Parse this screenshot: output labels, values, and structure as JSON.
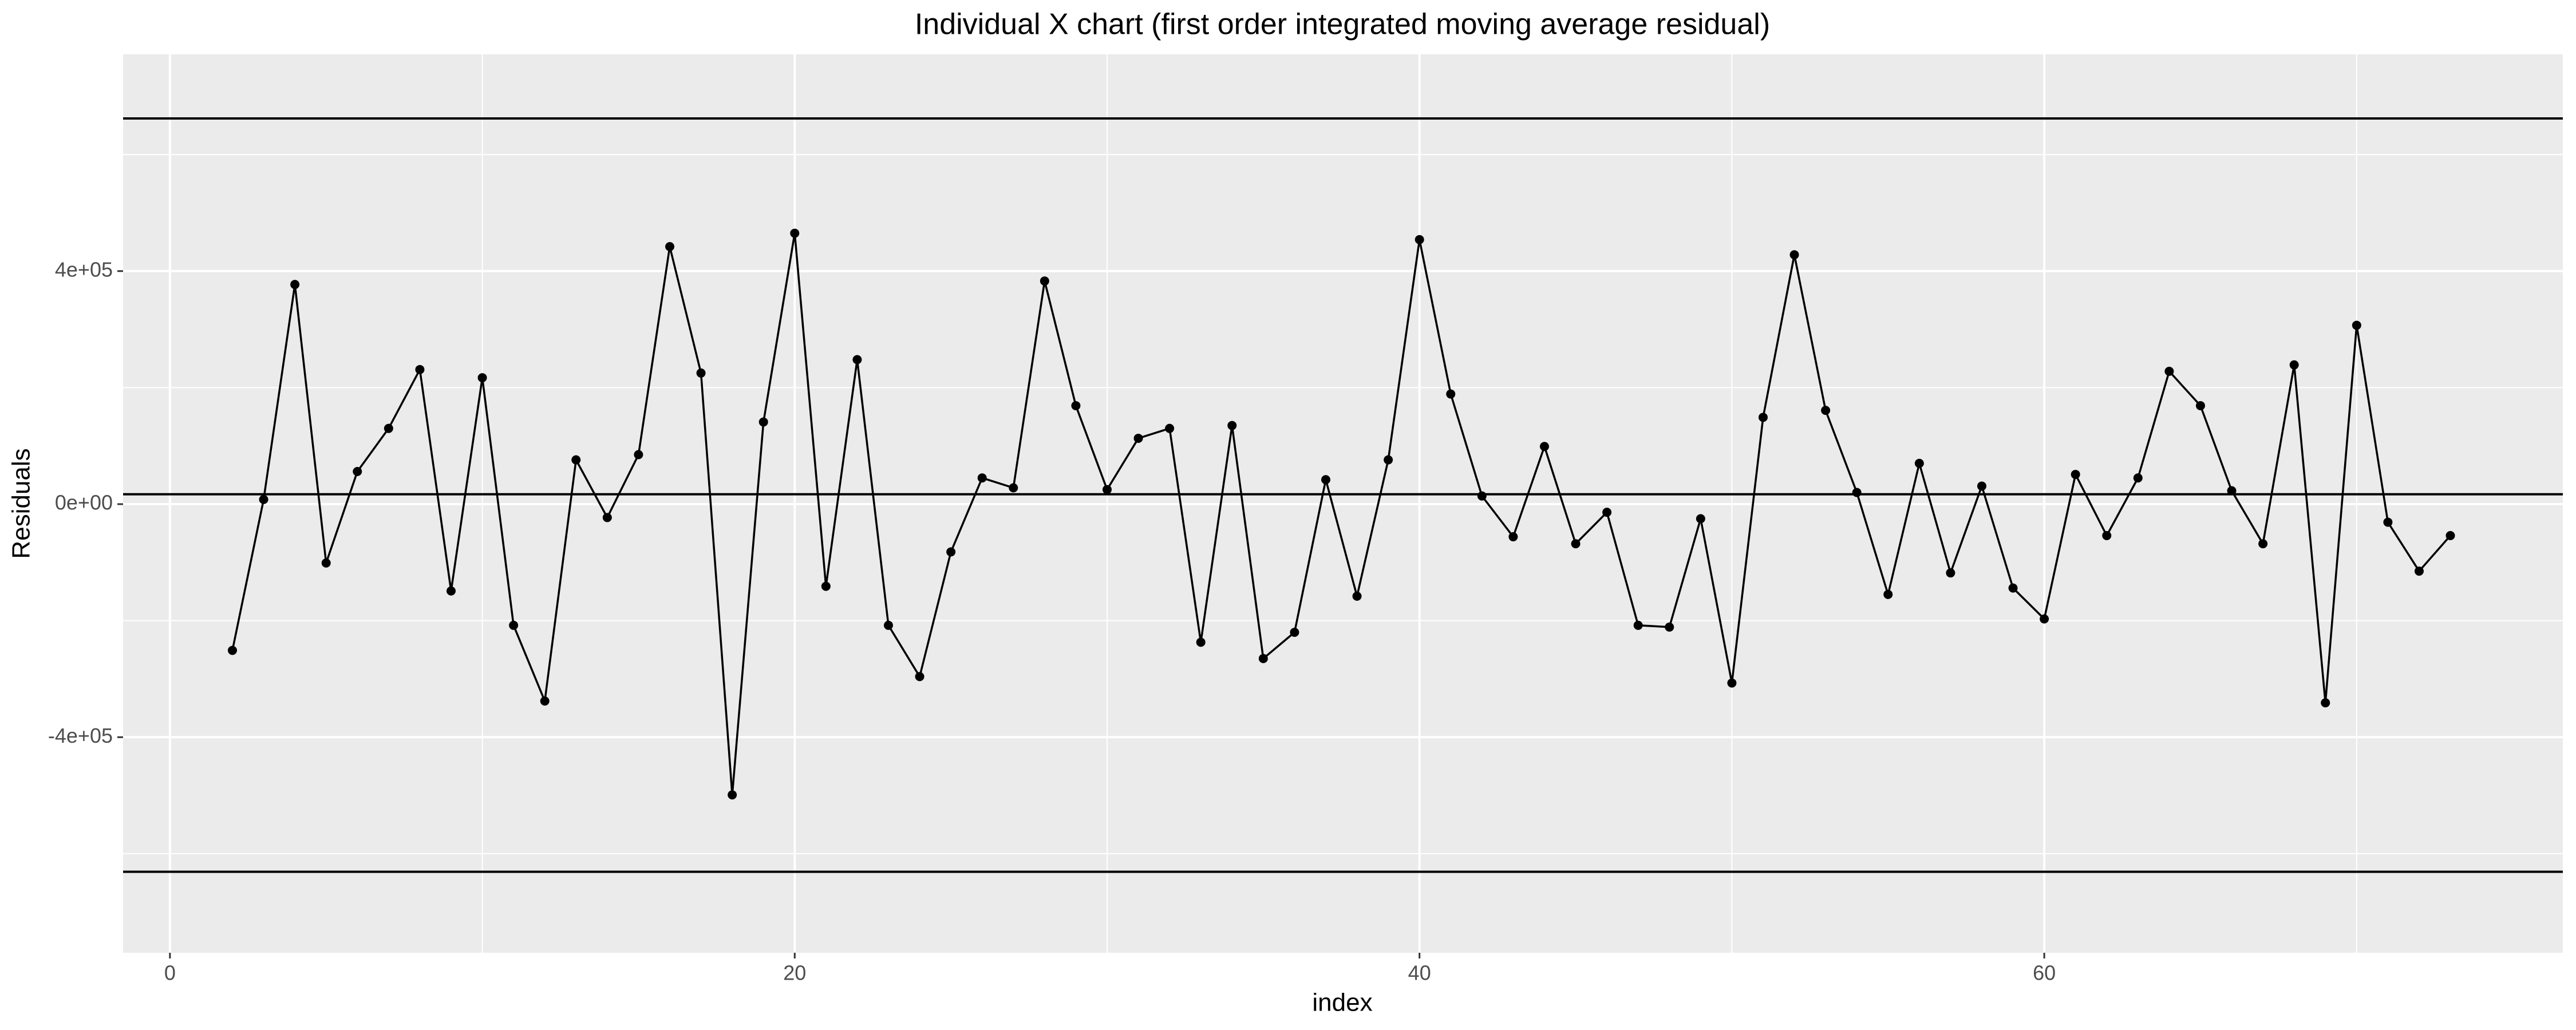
{
  "chart_data": {
    "type": "line",
    "title": "Individual X chart (first order integrated moving average residual)",
    "x_label": "index",
    "y_label": "Residuals",
    "x": [
      2,
      3,
      4,
      5,
      6,
      7,
      8,
      9,
      10,
      11,
      12,
      13,
      14,
      15,
      16,
      17,
      18,
      19,
      20,
      21,
      22,
      23,
      24,
      25,
      26,
      27,
      28,
      29,
      30,
      31,
      32,
      33,
      34,
      35,
      36,
      37,
      38,
      39,
      40,
      41,
      42,
      43,
      44,
      45,
      46,
      47,
      48,
      49,
      50,
      51,
      52,
      53,
      54,
      55,
      56,
      57,
      58,
      59,
      60,
      61,
      62,
      63,
      64,
      65,
      66,
      67,
      68,
      69,
      70,
      71,
      72,
      73
    ],
    "series": [
      {
        "color": "#000000",
        "values": [
          -251000,
          8000,
          377000,
          -101000,
          56000,
          130000,
          231000,
          -149000,
          217000,
          -208000,
          -338000,
          76000,
          -23000,
          85000,
          442000,
          225000,
          -499000,
          141000,
          465000,
          -141000,
          248000,
          -208000,
          -296000,
          -82000,
          45000,
          28000,
          383000,
          169000,
          25000,
          113000,
          130000,
          -237000,
          135000,
          -265000,
          -220000,
          42000,
          -158000,
          76000,
          454000,
          189000,
          14000,
          -56000,
          99000,
          -68000,
          -14000,
          -208000,
          -211000,
          -25000,
          -307000,
          149000,
          428000,
          161000,
          20000,
          -155000,
          70000,
          -118000,
          31000,
          -144000,
          -197000,
          51000,
          -54000,
          45000,
          228000,
          169000,
          23000,
          -68000,
          239000,
          -341000,
          307000,
          -31000,
          -115000,
          -54000
        ]
      }
    ],
    "hlines": [
      662000,
      17000,
      -631000
    ],
    "xlim": [
      -1.5,
      76.6
    ],
    "ylim": [
      -770000,
      772000
    ],
    "xticks": [
      0,
      20,
      40,
      60
    ],
    "yticks": [
      {
        "value": -400000,
        "label": "-4e+05"
      },
      {
        "value": 0,
        "label": "0e+00"
      },
      {
        "value": 400000,
        "label": "4e+05"
      }
    ],
    "xminor_ticks": [
      10,
      30,
      50,
      70
    ],
    "yminor_ticks": [
      -600000,
      -200000,
      200000,
      600000
    ],
    "grid": true,
    "panel_color": "#ebebeb"
  }
}
